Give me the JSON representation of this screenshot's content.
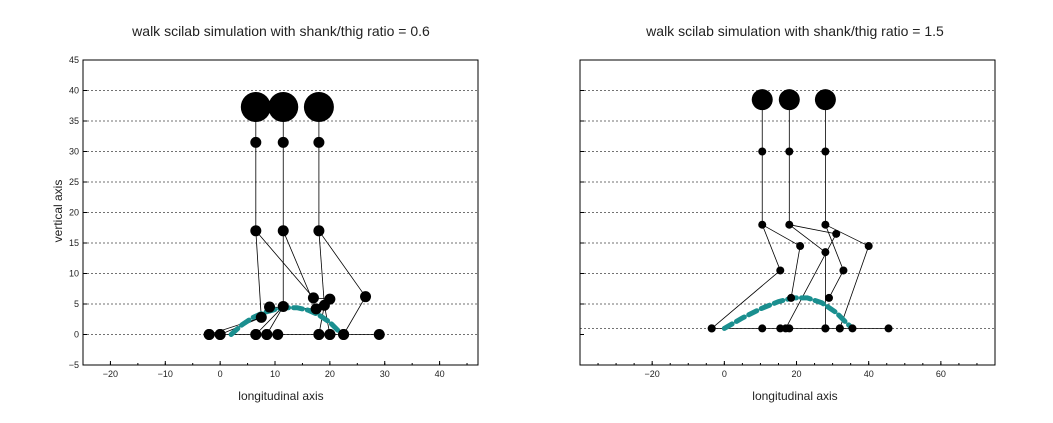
{
  "chart_data": [
    {
      "type": "scatter",
      "title": "walk scilab simulation with shank/thig ratio = 0.6",
      "xlabel": "longitudinal axis",
      "ylabel": "vertical axis",
      "xlim": [
        -25,
        47
      ],
      "ylim": [
        -5,
        45
      ],
      "xticks": [
        -20,
        -10,
        0,
        10,
        20,
        30,
        40
      ],
      "yticks": [
        -5,
        0,
        5,
        10,
        15,
        20,
        25,
        30,
        35,
        40,
        45
      ],
      "show_y_tick_labels": true,
      "grid": "horizontal-dashed",
      "gridlines_y": [
        0,
        5,
        10,
        15,
        20,
        25,
        30,
        35,
        40,
        45
      ],
      "trajectory_color": "#1a8f8f",
      "trajectory": [
        [
          2,
          0
        ],
        [
          4,
          1.6
        ],
        [
          6,
          2.8
        ],
        [
          8,
          3.6
        ],
        [
          10,
          4.1
        ],
        [
          12,
          4.4
        ],
        [
          14,
          4.4
        ],
        [
          16,
          4.0
        ],
        [
          18,
          3.2
        ],
        [
          20,
          2.0
        ],
        [
          22,
          0.2
        ]
      ],
      "hip_joints": [
        [
          6.5,
          37.3
        ],
        [
          11.5,
          37.3
        ],
        [
          18,
          37.3
        ]
      ],
      "skeleton_poses": [
        {
          "hip": [
            6.5,
            31.5
          ],
          "knee": [
            6.5,
            17
          ],
          "left_ankle": [
            17,
            6
          ],
          "left_toe": [
            20,
            5.8
          ],
          "right_ankle": [
            7.5,
            2.8
          ],
          "right_toe": [
            -2,
            0
          ],
          "right_heel": [
            0,
            0
          ]
        },
        {
          "hip": [
            11.5,
            31.5
          ],
          "knee": [
            11.5,
            17
          ],
          "left_ankle": [
            17.5,
            4.2
          ],
          "left_toe": [
            9,
            4.5
          ],
          "right_ankle": [
            11.5,
            4.6
          ],
          "right_toe": [
            6.5,
            0
          ],
          "right_heel": [
            8.5,
            0
          ]
        },
        {
          "hip": [
            18,
            31.5
          ],
          "knee": [
            18,
            17
          ],
          "left_ankle": [
            26.5,
            6.2
          ],
          "left_toe": [
            22.5,
            0
          ],
          "right_ankle": [
            19,
            4.8
          ],
          "right_toe": [
            18,
            0
          ],
          "right_heel": [
            20,
            0
          ]
        }
      ],
      "stance_points": [
        [
          -2,
          0
        ],
        [
          0,
          0
        ],
        [
          6.5,
          0
        ],
        [
          8.5,
          0
        ],
        [
          10.5,
          0
        ],
        [
          18,
          0
        ],
        [
          20,
          0
        ],
        [
          22.5,
          0
        ],
        [
          29,
          0
        ]
      ],
      "hip_marker_size": "large",
      "joint_marker_size": "medium"
    },
    {
      "type": "scatter",
      "title": "walk scilab simulation with shank/thig ratio = 1.5",
      "xlabel": "longitudinal axis",
      "ylabel": "",
      "xlim": [
        -40,
        75
      ],
      "ylim": [
        -5,
        45
      ],
      "xticks": [
        -20,
        0,
        20,
        40,
        60
      ],
      "yticks": [
        -5,
        0,
        5,
        10,
        15,
        20,
        25,
        30,
        35,
        40,
        45
      ],
      "show_y_tick_labels": false,
      "grid": "horizontal-dashed",
      "gridlines_y": [
        1,
        5,
        10,
        15,
        20,
        25,
        30,
        35,
        40,
        45
      ],
      "trajectory_color": "#1a8f8f",
      "trajectory": [
        [
          0,
          1
        ],
        [
          5,
          2.7
        ],
        [
          10,
          4.2
        ],
        [
          15,
          5.4
        ],
        [
          19,
          6.0
        ],
        [
          23,
          6.0
        ],
        [
          27,
          5.2
        ],
        [
          31,
          3.6
        ],
        [
          34,
          1.8
        ],
        [
          35.5,
          1
        ]
      ],
      "hip_joints": [
        [
          10.5,
          38.5
        ],
        [
          18,
          38.5
        ],
        [
          28,
          38.5
        ]
      ],
      "skeleton_poses": [
        {
          "hip": [
            10.5,
            30
          ],
          "knee": [
            10.5,
            18
          ],
          "left_ankle": [
            15.5,
            10.5
          ],
          "left_toe": [
            -3.5,
            1
          ],
          "right_ankle": [
            21,
            14.5
          ],
          "right_toe": [
            18.5,
            6
          ]
        },
        {
          "hip": [
            18,
            30
          ],
          "knee": [
            18,
            18
          ],
          "left_ankle": [
            31,
            16.5
          ],
          "left_toe": [
            17,
            1
          ],
          "right_ankle": [
            28,
            13.5
          ],
          "right_toe": [
            28,
            1
          ]
        },
        {
          "hip": [
            28,
            30
          ],
          "knee": [
            28,
            18
          ],
          "left_ankle": [
            40,
            14.5
          ],
          "left_toe": [
            32,
            1
          ],
          "right_ankle": [
            33,
            10.5
          ],
          "right_toe": [
            29,
            6
          ]
        }
      ],
      "stance_points": [
        [
          -3.5,
          1
        ],
        [
          10.5,
          1
        ],
        [
          15.5,
          1
        ],
        [
          18,
          1
        ],
        [
          28,
          1
        ],
        [
          32,
          1
        ],
        [
          35.5,
          1
        ],
        [
          45.5,
          1
        ]
      ],
      "hip_marker_size": "medium",
      "joint_marker_size": "small"
    }
  ]
}
